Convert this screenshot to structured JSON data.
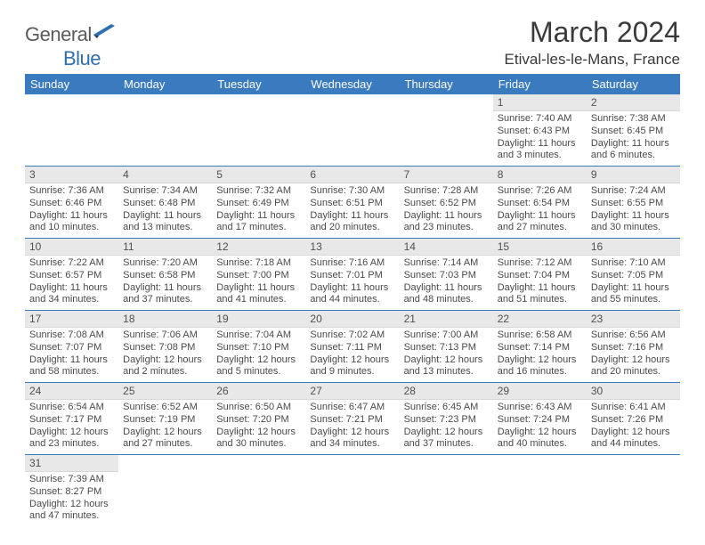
{
  "logo": {
    "text_a": "General",
    "text_b": "Blue"
  },
  "title": "March 2024",
  "location": "Etival-les-le-Mans, France",
  "colors": {
    "header_bg": "#3a7abf",
    "header_fg": "#ffffff",
    "daynum_bg": "#e8e8e8",
    "rule": "#3a7abf",
    "logo_blue": "#2f6fb0",
    "text": "#3a3a3a"
  },
  "weekdays": [
    "Sunday",
    "Monday",
    "Tuesday",
    "Wednesday",
    "Thursday",
    "Friday",
    "Saturday"
  ],
  "weeks": [
    [
      null,
      null,
      null,
      null,
      null,
      {
        "n": "1",
        "sr": "Sunrise: 7:40 AM",
        "ss": "Sunset: 6:43 PM",
        "d1": "Daylight: 11 hours",
        "d2": "and 3 minutes."
      },
      {
        "n": "2",
        "sr": "Sunrise: 7:38 AM",
        "ss": "Sunset: 6:45 PM",
        "d1": "Daylight: 11 hours",
        "d2": "and 6 minutes."
      }
    ],
    [
      {
        "n": "3",
        "sr": "Sunrise: 7:36 AM",
        "ss": "Sunset: 6:46 PM",
        "d1": "Daylight: 11 hours",
        "d2": "and 10 minutes."
      },
      {
        "n": "4",
        "sr": "Sunrise: 7:34 AM",
        "ss": "Sunset: 6:48 PM",
        "d1": "Daylight: 11 hours",
        "d2": "and 13 minutes."
      },
      {
        "n": "5",
        "sr": "Sunrise: 7:32 AM",
        "ss": "Sunset: 6:49 PM",
        "d1": "Daylight: 11 hours",
        "d2": "and 17 minutes."
      },
      {
        "n": "6",
        "sr": "Sunrise: 7:30 AM",
        "ss": "Sunset: 6:51 PM",
        "d1": "Daylight: 11 hours",
        "d2": "and 20 minutes."
      },
      {
        "n": "7",
        "sr": "Sunrise: 7:28 AM",
        "ss": "Sunset: 6:52 PM",
        "d1": "Daylight: 11 hours",
        "d2": "and 23 minutes."
      },
      {
        "n": "8",
        "sr": "Sunrise: 7:26 AM",
        "ss": "Sunset: 6:54 PM",
        "d1": "Daylight: 11 hours",
        "d2": "and 27 minutes."
      },
      {
        "n": "9",
        "sr": "Sunrise: 7:24 AM",
        "ss": "Sunset: 6:55 PM",
        "d1": "Daylight: 11 hours",
        "d2": "and 30 minutes."
      }
    ],
    [
      {
        "n": "10",
        "sr": "Sunrise: 7:22 AM",
        "ss": "Sunset: 6:57 PM",
        "d1": "Daylight: 11 hours",
        "d2": "and 34 minutes."
      },
      {
        "n": "11",
        "sr": "Sunrise: 7:20 AM",
        "ss": "Sunset: 6:58 PM",
        "d1": "Daylight: 11 hours",
        "d2": "and 37 minutes."
      },
      {
        "n": "12",
        "sr": "Sunrise: 7:18 AM",
        "ss": "Sunset: 7:00 PM",
        "d1": "Daylight: 11 hours",
        "d2": "and 41 minutes."
      },
      {
        "n": "13",
        "sr": "Sunrise: 7:16 AM",
        "ss": "Sunset: 7:01 PM",
        "d1": "Daylight: 11 hours",
        "d2": "and 44 minutes."
      },
      {
        "n": "14",
        "sr": "Sunrise: 7:14 AM",
        "ss": "Sunset: 7:03 PM",
        "d1": "Daylight: 11 hours",
        "d2": "and 48 minutes."
      },
      {
        "n": "15",
        "sr": "Sunrise: 7:12 AM",
        "ss": "Sunset: 7:04 PM",
        "d1": "Daylight: 11 hours",
        "d2": "and 51 minutes."
      },
      {
        "n": "16",
        "sr": "Sunrise: 7:10 AM",
        "ss": "Sunset: 7:05 PM",
        "d1": "Daylight: 11 hours",
        "d2": "and 55 minutes."
      }
    ],
    [
      {
        "n": "17",
        "sr": "Sunrise: 7:08 AM",
        "ss": "Sunset: 7:07 PM",
        "d1": "Daylight: 11 hours",
        "d2": "and 58 minutes."
      },
      {
        "n": "18",
        "sr": "Sunrise: 7:06 AM",
        "ss": "Sunset: 7:08 PM",
        "d1": "Daylight: 12 hours",
        "d2": "and 2 minutes."
      },
      {
        "n": "19",
        "sr": "Sunrise: 7:04 AM",
        "ss": "Sunset: 7:10 PM",
        "d1": "Daylight: 12 hours",
        "d2": "and 5 minutes."
      },
      {
        "n": "20",
        "sr": "Sunrise: 7:02 AM",
        "ss": "Sunset: 7:11 PM",
        "d1": "Daylight: 12 hours",
        "d2": "and 9 minutes."
      },
      {
        "n": "21",
        "sr": "Sunrise: 7:00 AM",
        "ss": "Sunset: 7:13 PM",
        "d1": "Daylight: 12 hours",
        "d2": "and 13 minutes."
      },
      {
        "n": "22",
        "sr": "Sunrise: 6:58 AM",
        "ss": "Sunset: 7:14 PM",
        "d1": "Daylight: 12 hours",
        "d2": "and 16 minutes."
      },
      {
        "n": "23",
        "sr": "Sunrise: 6:56 AM",
        "ss": "Sunset: 7:16 PM",
        "d1": "Daylight: 12 hours",
        "d2": "and 20 minutes."
      }
    ],
    [
      {
        "n": "24",
        "sr": "Sunrise: 6:54 AM",
        "ss": "Sunset: 7:17 PM",
        "d1": "Daylight: 12 hours",
        "d2": "and 23 minutes."
      },
      {
        "n": "25",
        "sr": "Sunrise: 6:52 AM",
        "ss": "Sunset: 7:19 PM",
        "d1": "Daylight: 12 hours",
        "d2": "and 27 minutes."
      },
      {
        "n": "26",
        "sr": "Sunrise: 6:50 AM",
        "ss": "Sunset: 7:20 PM",
        "d1": "Daylight: 12 hours",
        "d2": "and 30 minutes."
      },
      {
        "n": "27",
        "sr": "Sunrise: 6:47 AM",
        "ss": "Sunset: 7:21 PM",
        "d1": "Daylight: 12 hours",
        "d2": "and 34 minutes."
      },
      {
        "n": "28",
        "sr": "Sunrise: 6:45 AM",
        "ss": "Sunset: 7:23 PM",
        "d1": "Daylight: 12 hours",
        "d2": "and 37 minutes."
      },
      {
        "n": "29",
        "sr": "Sunrise: 6:43 AM",
        "ss": "Sunset: 7:24 PM",
        "d1": "Daylight: 12 hours",
        "d2": "and 40 minutes."
      },
      {
        "n": "30",
        "sr": "Sunrise: 6:41 AM",
        "ss": "Sunset: 7:26 PM",
        "d1": "Daylight: 12 hours",
        "d2": "and 44 minutes."
      }
    ],
    [
      {
        "n": "31",
        "sr": "Sunrise: 7:39 AM",
        "ss": "Sunset: 8:27 PM",
        "d1": "Daylight: 12 hours",
        "d2": "and 47 minutes."
      },
      null,
      null,
      null,
      null,
      null,
      null
    ]
  ]
}
